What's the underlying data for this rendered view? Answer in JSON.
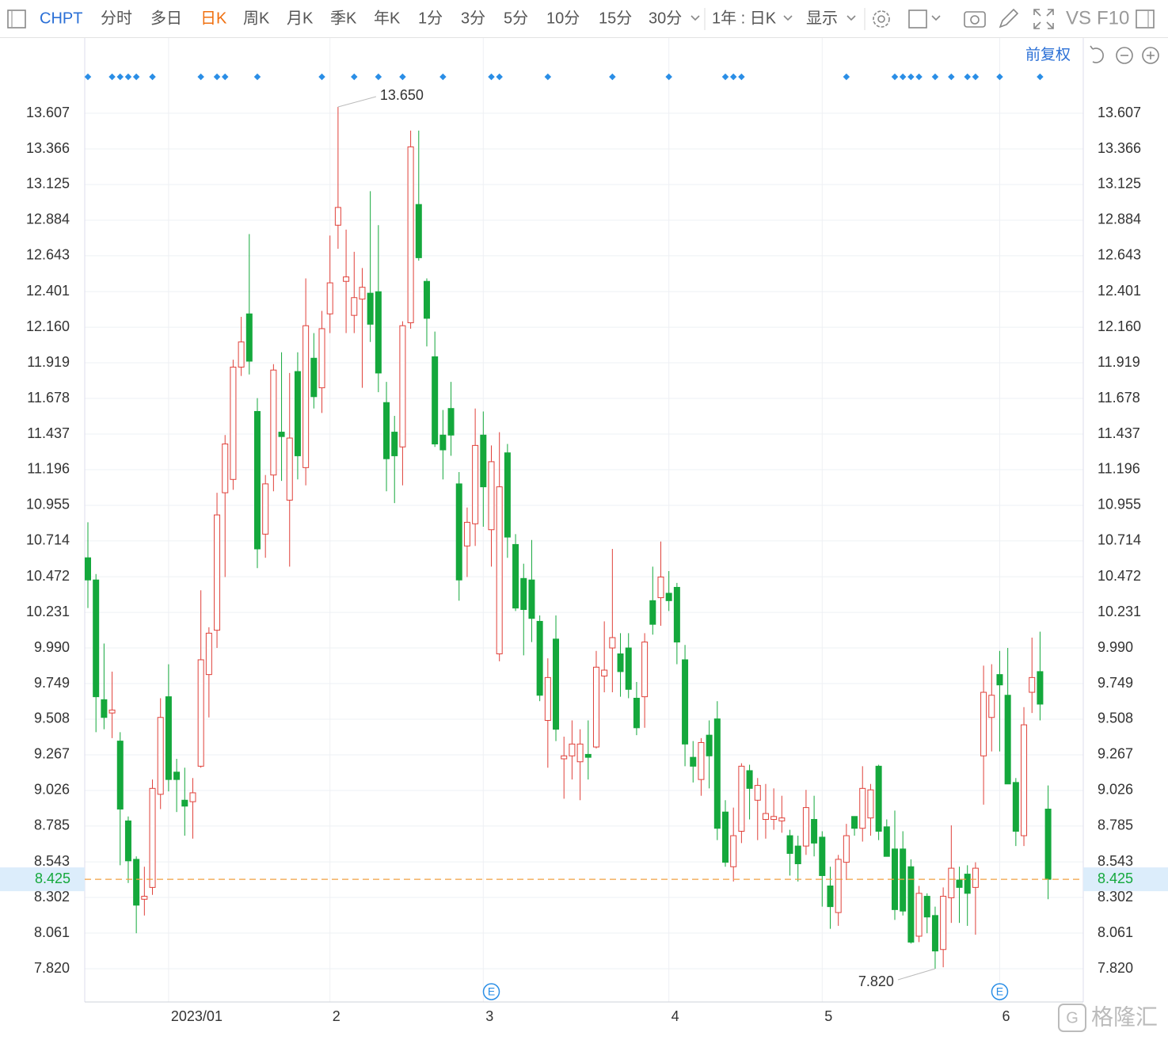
{
  "toolbar": {
    "symbol": "CHPT",
    "periods": [
      "分时",
      "多日",
      "日K",
      "周K",
      "月K",
      "季K",
      "年K",
      "1分",
      "3分",
      "5分",
      "10分",
      "15分",
      "30分"
    ],
    "active": 2,
    "range": "1年 : 日K",
    "display": "显示",
    "vs": "VS",
    "f10": "F10"
  },
  "adjust": "前复权",
  "watermark": "格隆汇",
  "chart_data": {
    "type": "candlestick",
    "up_color": "#e0413a",
    "down_color": "#14a83c",
    "grid": true,
    "ylim": [
      7.595,
      13.784
    ],
    "yticks": [
      13.607,
      13.366,
      13.125,
      12.884,
      12.643,
      12.401,
      {
        "value": 12.16,
        "label": "12.160"
      },
      11.919,
      11.678,
      11.437,
      11.196,
      10.955,
      10.714,
      10.472,
      10.231,
      {
        "value": 9.99,
        "label": "9.990"
      },
      9.749,
      9.508,
      9.267,
      9.026,
      8.785,
      8.543,
      8.302,
      8.061,
      {
        "value": 7.82,
        "label": "7.820"
      }
    ],
    "xticks": [
      {
        "value": 10,
        "label": "2023/01"
      },
      {
        "value": 30,
        "label": "2"
      },
      {
        "value": 49,
        "label": "3"
      },
      {
        "value": 72,
        "label": "4"
      },
      {
        "value": 91,
        "label": "5"
      },
      {
        "value": 113,
        "label": "6"
      }
    ],
    "open": [
      10.6,
      10.45,
      9.64,
      9.55,
      9.36,
      8.82,
      8.56,
      8.29,
      8.37,
      9.0,
      9.66,
      9.15,
      8.96,
      8.95,
      9.19,
      9.81,
      10.11,
      11.04,
      11.13,
      11.89,
      12.25,
      11.59,
      10.76,
      11.16,
      11.45,
      10.99,
      11.86,
      11.21,
      11.95,
      11.75,
      12.25,
      12.85,
      12.47,
      12.24,
      12.35,
      12.39,
      12.4,
      11.65,
      11.45,
      11.35,
      12.19,
      12.99,
      12.47,
      11.96,
      11.43,
      11.61,
      11.1,
      10.68,
      10.83,
      11.43,
      10.79,
      9.95,
      11.31,
      10.69,
      10.46,
      10.45,
      10.17,
      9.5,
      10.05,
      9.24,
      9.26,
      9.22,
      9.27,
      9.32,
      9.8,
      9.99,
      9.95,
      9.99,
      9.65,
      9.66,
      10.31,
      10.33,
      10.36,
      10.4,
      9.91,
      9.25,
      9.1,
      9.4,
      9.51,
      8.88,
      8.51,
      8.75,
      9.16,
      8.96,
      8.83,
      8.83,
      8.82,
      8.72,
      8.65,
      8.65,
      8.83,
      8.71,
      8.38,
      8.2,
      8.54,
      8.85,
      8.77,
      8.84,
      9.19,
      8.78,
      8.63,
      8.63,
      8.51,
      8.04,
      8.31,
      8.18,
      7.95,
      8.3,
      8.42,
      8.46,
      8.37,
      9.26,
      9.52,
      9.81,
      9.67,
      9.08,
      8.72,
      9.69,
      9.83,
      8.9
    ],
    "high": [
      10.84,
      10.49,
      10.02,
      9.83,
      9.42,
      8.85,
      8.58,
      8.51,
      9.1,
      9.65,
      9.88,
      9.24,
      9.18,
      9.11,
      10.38,
      10.13,
      11.04,
      11.43,
      11.94,
      12.23,
      12.79,
      11.68,
      11.16,
      11.91,
      11.99,
      11.85,
      11.99,
      12.49,
      12.12,
      12.27,
      12.78,
      13.65,
      12.82,
      12.67,
      12.56,
      13.08,
      12.85,
      11.79,
      11.56,
      12.2,
      13.49,
      13.49,
      12.49,
      12.13,
      11.6,
      11.79,
      11.18,
      10.94,
      11.61,
      11.59,
      11.36,
      11.45,
      11.37,
      10.76,
      10.56,
      10.72,
      10.21,
      9.92,
      10.21,
      9.39,
      9.5,
      9.44,
      9.5,
      9.97,
      10.17,
      10.66,
      10.09,
      10.09,
      9.76,
      10.09,
      10.54,
      10.71,
      10.51,
      10.43,
      10.01,
      9.36,
      9.38,
      9.5,
      9.63,
      8.96,
      8.91,
      9.21,
      9.2,
      9.11,
      9.07,
      9.04,
      8.99,
      8.76,
      8.72,
      9.03,
      8.99,
      8.75,
      8.51,
      8.59,
      8.8,
      8.85,
      9.19,
      9.07,
      9.2,
      8.83,
      8.89,
      8.75,
      8.56,
      8.38,
      8.33,
      8.24,
      8.37,
      8.79,
      8.51,
      8.52,
      8.54,
      9.87,
      9.88,
      9.97,
      9.99,
      9.11,
      9.59,
      10.06,
      10.1,
      9.06
    ],
    "low": [
      10.26,
      9.42,
      9.44,
      9.38,
      8.52,
      8.4,
      8.06,
      8.18,
      8.32,
      8.9,
      9.02,
      8.88,
      8.72,
      8.7,
      9.18,
      9.52,
      9.99,
      10.47,
      11.06,
      11.83,
      11.84,
      10.53,
      10.6,
      11.05,
      11.12,
      10.54,
      11.13,
      11.09,
      11.61,
      11.58,
      12.12,
      12.69,
      12.12,
      12.12,
      11.75,
      12.06,
      11.72,
      11.05,
      10.97,
      11.09,
      12.15,
      12.61,
      12.03,
      11.35,
      11.13,
      11.29,
      10.31,
      10.47,
      10.68,
      10.81,
      10.54,
      9.9,
      10.6,
      10.24,
      9.94,
      10.03,
      9.63,
      9.18,
      9.36,
      8.97,
      9.1,
      8.96,
      9.1,
      9.31,
      9.69,
      9.69,
      9.66,
      9.65,
      9.4,
      9.45,
      10.08,
      10.14,
      10.24,
      9.88,
      9.19,
      9.08,
      8.99,
      9.04,
      8.69,
      8.51,
      8.41,
      8.67,
      8.83,
      8.69,
      8.7,
      8.76,
      8.74,
      8.45,
      8.41,
      8.59,
      8.58,
      8.24,
      8.09,
      8.11,
      8.42,
      8.72,
      8.68,
      8.72,
      8.69,
      8.58,
      8.15,
      8.18,
      7.99,
      8.0,
      8.06,
      7.82,
      7.83,
      8.13,
      8.13,
      8.11,
      8.05,
      8.93,
      9.29,
      9.29,
      9.07,
      8.65,
      8.65,
      9.55,
      9.5,
      8.29
    ],
    "close": [
      10.45,
      9.66,
      9.52,
      9.57,
      8.9,
      8.55,
      8.25,
      8.31,
      9.04,
      9.52,
      9.1,
      9.1,
      8.92,
      9.01,
      9.91,
      10.09,
      10.89,
      11.37,
      11.89,
      12.06,
      11.93,
      10.66,
      11.1,
      11.87,
      11.42,
      11.41,
      11.29,
      12.17,
      11.69,
      12.15,
      12.46,
      12.97,
      12.5,
      12.36,
      12.43,
      12.18,
      11.85,
      11.27,
      11.29,
      12.17,
      13.38,
      12.63,
      12.22,
      11.37,
      11.33,
      11.43,
      10.45,
      10.84,
      11.36,
      11.08,
      11.25,
      11.08,
      10.74,
      10.26,
      10.25,
      10.19,
      9.67,
      9.79,
      9.44,
      9.26,
      9.34,
      9.34,
      9.25,
      9.86,
      9.84,
      10.06,
      9.83,
      9.71,
      9.45,
      10.03,
      10.15,
      10.47,
      10.31,
      10.03,
      9.34,
      9.19,
      9.35,
      9.26,
      8.77,
      8.54,
      8.72,
      9.19,
      9.04,
      9.06,
      8.87,
      8.85,
      8.84,
      8.6,
      8.53,
      8.91,
      8.67,
      8.45,
      8.24,
      8.56,
      8.72,
      8.77,
      9.04,
      9.03,
      8.75,
      8.58,
      8.22,
      8.21,
      8.0,
      8.33,
      8.17,
      7.94,
      8.31,
      8.5,
      8.37,
      8.33,
      8.5,
      9.69,
      9.67,
      9.74,
      9.07,
      8.75,
      9.47,
      9.79,
      9.61,
      8.425
    ],
    "annotations": [
      {
        "value": 13.65,
        "label": "13.650"
      },
      {
        "value": 7.82,
        "label": "7.820"
      }
    ],
    "event_markers": [
      0,
      3,
      4,
      5,
      6,
      8,
      14,
      16,
      17,
      21,
      29,
      33,
      36,
      39,
      44,
      50,
      51,
      57,
      65,
      72,
      79,
      80,
      81,
      94,
      100,
      101,
      102,
      103,
      105,
      107,
      109,
      110,
      113,
      118
    ],
    "earnings": {
      "label": "E",
      "x": [
        50,
        113
      ]
    }
  }
}
